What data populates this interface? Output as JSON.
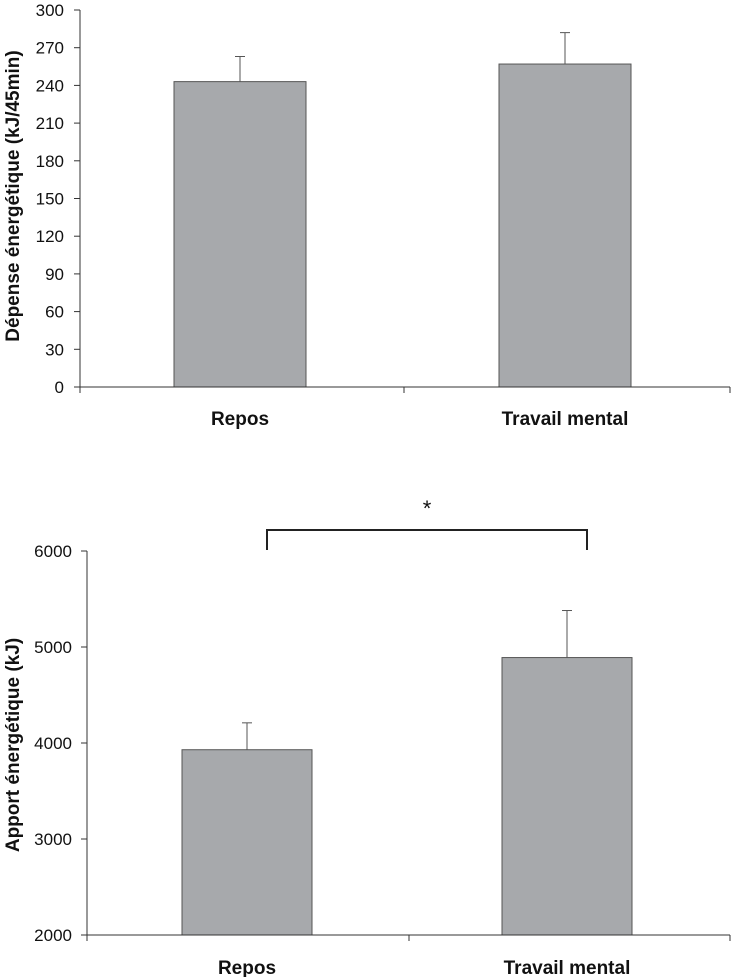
{
  "chart_data": [
    {
      "type": "bar",
      "title": "",
      "xlabel": "",
      "ylabel": "Dépense énergétique (kJ/45min)",
      "categories": [
        "Repos",
        "Travail mental"
      ],
      "values": [
        243,
        257
      ],
      "errors": [
        20,
        25
      ],
      "ylim": [
        0,
        300
      ],
      "yticks": [
        0,
        30,
        60,
        90,
        120,
        150,
        180,
        210,
        240,
        270,
        300
      ],
      "ytick_labels": [
        "0",
        "30",
        "60",
        "90",
        "120",
        "150",
        "180",
        "210",
        "240",
        "270",
        "300"
      ],
      "bar_color": "#a7a9ac",
      "grid": false,
      "significance": null
    },
    {
      "type": "bar",
      "title": "",
      "xlabel": "",
      "ylabel": "Apport énergétique (kJ)",
      "categories": [
        "Repos",
        "Travail mental"
      ],
      "values": [
        3930,
        4890
      ],
      "errors": [
        280,
        490
      ],
      "ylim": [
        2000,
        6000
      ],
      "yticks": [
        2000,
        3000,
        4000,
        5000,
        6000
      ],
      "ytick_labels": [
        "2000",
        "3000",
        "4000",
        "5000",
        "6000"
      ],
      "bar_color": "#a7a9ac",
      "grid": false,
      "significance": "*"
    }
  ]
}
